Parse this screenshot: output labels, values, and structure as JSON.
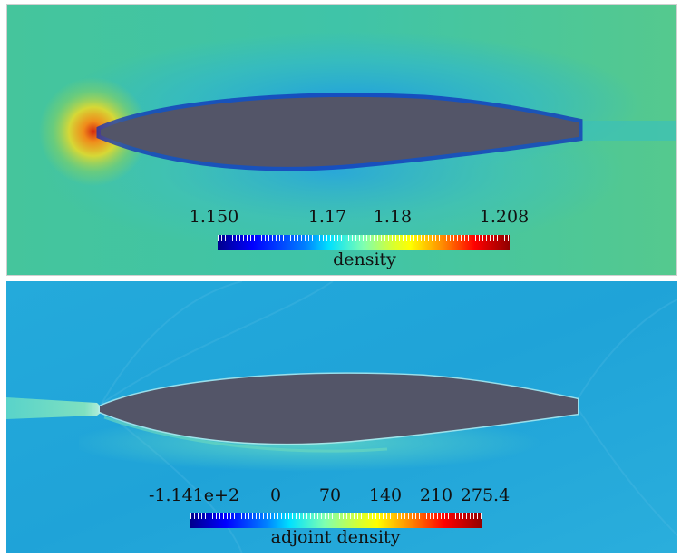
{
  "panels": {
    "top": {
      "colorbar": {
        "title": "density",
        "ticks": [
          "1.150",
          "1.17",
          "1.18",
          "1.208"
        ]
      }
    },
    "bottom": {
      "colorbar": {
        "title": "adjoint density",
        "ticks": [
          "-1.141e+2",
          "0",
          "70",
          "140",
          "210",
          "275.4"
        ]
      }
    }
  },
  "colors": {
    "airfoil": "#535568",
    "density_background": "#49c98f",
    "adjoint_background": "#1fa6d8"
  }
}
